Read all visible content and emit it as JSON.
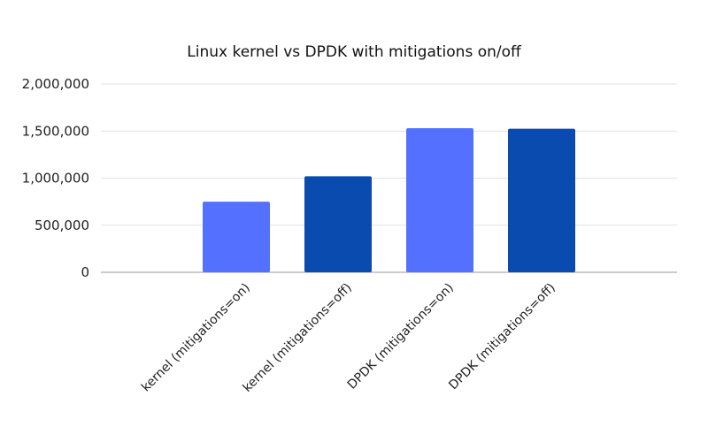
{
  "chart_data": {
    "type": "bar",
    "title": "Linux kernel vs DPDK with mitigations on/off",
    "categories": [
      "kernel (mitigations=on)",
      "kernel (mitigations=off)",
      "DPDK (mitigations=on)",
      "DPDK (mitigations=off)"
    ],
    "values": [
      750000,
      1020000,
      1530000,
      1525000
    ],
    "bar_colors": [
      "#5470ff",
      "#0a4bb0",
      "#5470ff",
      "#0a4bb0"
    ],
    "xlabel": "",
    "ylabel": "",
    "ylim": [
      0,
      2000000
    ],
    "yticks": [
      0,
      500000,
      1000000,
      1500000,
      2000000
    ],
    "ytick_labels": [
      "0",
      "500,000",
      "1,000,000",
      "1,500,000",
      "2,000,000"
    ],
    "grid": true,
    "legend": "none"
  }
}
